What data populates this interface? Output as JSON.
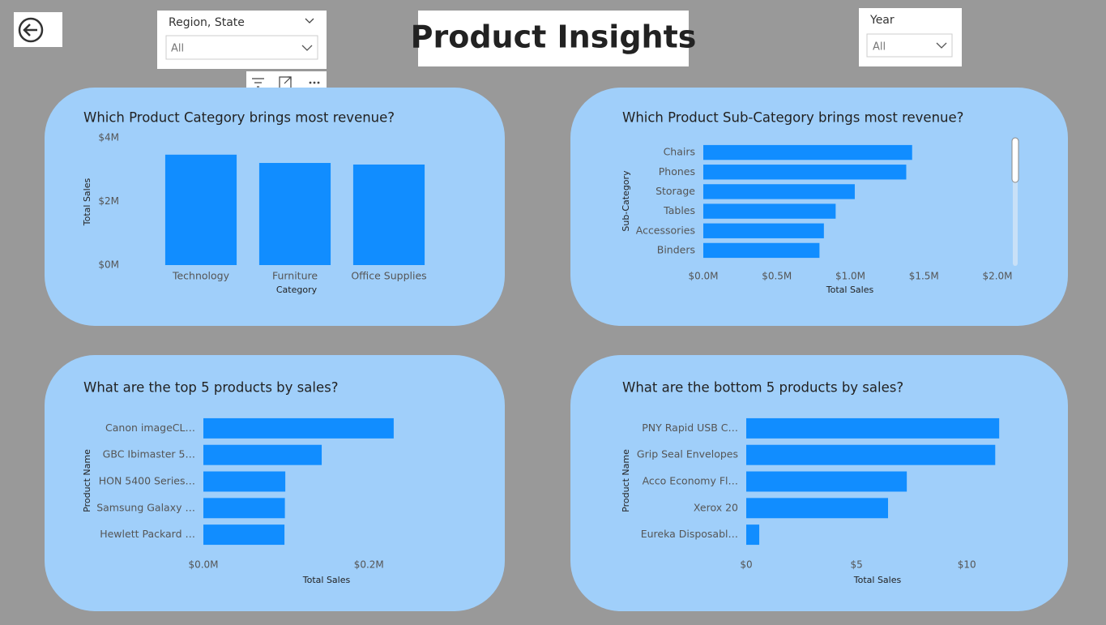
{
  "header": {
    "title": "Product Insights"
  },
  "slicers": [
    {
      "label": "Region, State",
      "value": "All"
    },
    {
      "label": "Year",
      "value": "All"
    }
  ],
  "chart_data": [
    {
      "type": "bar",
      "orientation": "vertical",
      "title": "Which Product Category brings most revenue?",
      "x_label": "Category",
      "y_label": "Total Sales",
      "categories": [
        "Technology",
        "Furniture",
        "Office Supplies"
      ],
      "values": [
        3470000,
        3210000,
        3160000
      ],
      "color": "#118dff",
      "ylim": [
        0,
        4000000
      ],
      "yticks": [
        {
          "value": 0,
          "label": "$0M"
        },
        {
          "value": 2000000,
          "label": "$2M"
        },
        {
          "value": 4000000,
          "label": "$4M"
        }
      ],
      "grid": false
    },
    {
      "type": "bar",
      "orientation": "horizontal",
      "title": "Which Product Sub-Category brings most revenue?",
      "x_label": "Total Sales",
      "y_label": "Sub-Category",
      "categories": [
        "Chairs",
        "Phones",
        "Storage",
        "Tables",
        "Accessories",
        "Binders"
      ],
      "values": [
        1420000,
        1380000,
        1030000,
        900000,
        820000,
        790000
      ],
      "color": "#118dff",
      "xlim": [
        0,
        2000000
      ],
      "xticks": [
        {
          "value": 0,
          "label": "$0.0M"
        },
        {
          "value": 500000,
          "label": "$0.5M"
        },
        {
          "value": 1000000,
          "label": "$1.0M"
        },
        {
          "value": 1500000,
          "label": "$1.5M"
        },
        {
          "value": 2000000,
          "label": "$2.0M"
        }
      ],
      "grid": false
    },
    {
      "type": "bar",
      "orientation": "horizontal",
      "title": "What are the top 5 products by sales?",
      "x_label": "Total Sales",
      "y_label": "Product Name",
      "categories": [
        "Canon imageCL…",
        "GBC Ibimaster 5…",
        "HON 5400 Series…",
        "Samsung Galaxy …",
        "Hewlett Packard …"
      ],
      "values": [
        230000,
        143000,
        99000,
        98500,
        98000
      ],
      "color": "#118dff",
      "xlim": [
        0,
        235000
      ],
      "xticks": [
        {
          "value": 0,
          "label": "$0.0M"
        },
        {
          "value": 200000,
          "label": "$0.2M"
        }
      ],
      "grid": false
    },
    {
      "type": "bar",
      "orientation": "horizontal",
      "title": "What are the bottom 5 products by sales?",
      "x_label": "Total Sales",
      "y_label": "Product Name",
      "categories": [
        "PNY Rapid USB C…",
        "Grip Seal Envelopes",
        "Acco Economy Fl…",
        "Xerox 20",
        "Eureka Disposabl…"
      ],
      "values": [
        11.47,
        11.29,
        7.28,
        6.43,
        0.59
      ],
      "color": "#118dff",
      "xlim": [
        0,
        11.5
      ],
      "xticks": [
        {
          "value": 0,
          "label": "$0"
        },
        {
          "value": 5,
          "label": "$5"
        },
        {
          "value": 10,
          "label": "$10"
        }
      ],
      "grid": false
    }
  ]
}
